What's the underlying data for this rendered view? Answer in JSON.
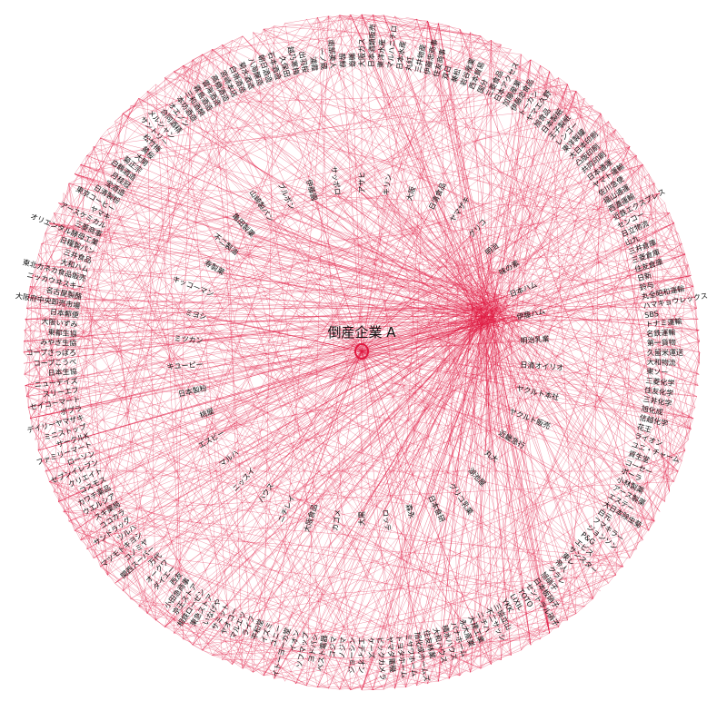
{
  "graph": {
    "center": {
      "label": "倒産企業 A"
    },
    "colors": {
      "edge": "#e0173f",
      "node": "#e0173f",
      "text": "#111111",
      "background": "#ffffff"
    },
    "inner_ring": [
      "大阪",
      "日清食品",
      "ヤマザキ",
      "グリコ",
      "明治",
      "味の素",
      "日本ハム",
      "伊藤ハム",
      "明治乳業",
      "日清オイリオ",
      "ヤクルト本社",
      "ヤクルト販売",
      "近畿急行",
      "丸大",
      "湖池屋",
      "グリコ乳業",
      "日本食研",
      "森永",
      "ロッテ",
      "大黒",
      "カゴメ",
      "大阪食品",
      "ニチレイ",
      "ハウス",
      "ニッスイ",
      "マルハ",
      "エスビー",
      "桃屋",
      "日本製粉",
      "キユーピー",
      "ミツカン",
      "ミヨシ",
      "キッコーマン",
      "寿製菓",
      "不二製油",
      "亀田製菓",
      "山崎製パン",
      "ブルボン",
      "伊藤園",
      "サッポロ",
      "アサヒ",
      "キリン"
    ],
    "outer_ring": [
      "大阪ガス",
      "日本酒類販売",
      "東洋水産",
      "マルハニチロ",
      "日本水産",
      "丸紅",
      "三井物産",
      "伊藤忠商事",
      "住友商事",
      "双日",
      "兼松",
      "岩谷産業",
      "西本貿易",
      "国分",
      "三菱食品",
      "日本アクセス",
      "加藤産業",
      "伊藤忠食品",
      "トーカン",
      "ヤマエ久野",
      "旭食品",
      "日本製紙",
      "王子製紙",
      "レンゴー",
      "東洋製罐",
      "大日本印刷",
      "凸版印刷",
      "共同印刷",
      "日本通運",
      "ヤマト運輸",
      "佐川急便",
      "福山通運",
      "西濃運輸",
      "近鉄エクスプレス",
      "センコー",
      "日立物流",
      "山九",
      "三井倉庫",
      "三菱倉庫",
      "住友倉庫",
      "日新",
      "鈴与",
      "丸全昭和運輸",
      "ハマキョウレックス",
      "SBS",
      "トナミ運輸",
      "名鉄運輸",
      "第一貨物",
      "久留米運送",
      "大和物流",
      "東ソー",
      "三菱化学",
      "住友化学",
      "三井化学",
      "旭化成",
      "信越化学",
      "花王",
      "ライオン",
      "ユニ・チャーム",
      "資生堂",
      "コーセー",
      "ポーラ",
      "小林製薬",
      "アース製薬",
      "エステー",
      "大日本除虫菊",
      "白元",
      "フマキラー",
      "ジョンソン",
      "P&G",
      "エビス",
      "サンスター",
      "東レ",
      "帝人",
      "クラレ",
      "旭硝子",
      "日本板硝子",
      "セントラル硝子",
      "TOTO",
      "LIXIL",
      "YKK",
      "三協立山",
      "不二サッシ",
      "ニチハ",
      "大建工業",
      "永大産業",
      "パナホーム",
      "積水ハウス",
      "大和ハウス",
      "住友林業",
      "旭化成ホームズ",
      "ミサワホーム",
      "トヨタホーム",
      "ヤマダ電機",
      "ビックカメラ",
      "ケーズ",
      "エディオン",
      "ジョーシン",
      "ノジマ",
      "コジマ",
      "ベスト電器",
      "ヨドバシ",
      "ソフマップ",
      "イオン",
      "イトーヨーカ堂",
      "ユニー",
      "イズミ",
      "平和堂",
      "ライフ",
      "マルエツ",
      "ヤオコー",
      "サミット",
      "いなげや",
      "東急ストア",
      "相鉄ローゼン",
      "京王ストア",
      "小田急商事",
      "西友",
      "ダイエー",
      "オークワ",
      "万代",
      "関西スーパー",
      "コノミヤ",
      "マツモトキヨシ",
      "ツルハ",
      "サンドラッグ",
      "ココカラ",
      "スギ薬局",
      "ウエルシア",
      "カワチ薬品",
      "コスモス",
      "クリエイト",
      "セブンイレブン",
      "ローソン",
      "ファミリーマート",
      "サークルK",
      "ミニストップ",
      "デイリーヤマザキ",
      "ポプラ",
      "セイコーマート",
      "スリーエフ",
      "ニューデイズ",
      "日本生協",
      "コープこうべ",
      "コープさっぽろ",
      "みやぎ生協",
      "東都生協",
      "大阪いずみ",
      "日本郵便",
      "大阪府中央卸売市場",
      "名古屋製酪",
      "ニッカウヰスキー",
      "東北カネカ食品販売",
      "大和ハム",
      "三井食品",
      "日糧製パン",
      "オリエンタル酵母工業",
      "三菱商事",
      "アースケミカル",
      "ヤマキ",
      "東京コーヒー",
      "日清製粉",
      "宝酒造",
      "月桂冠",
      "白鶴酒造",
      "菊正宗",
      "大関",
      "黄桜",
      "松竹梅",
      "サントリー",
      "メルシャン",
      "合同酒精",
      "オエノン",
      "本坊酒造",
      "三和酒類",
      "霧島酒造",
      "雲海酒造",
      "高橋酒造",
      "宮崎本店",
      "白嶺酒造",
      "菊水酒造",
      "八海醸造",
      "朝日酒造",
      "石本酒造",
      "久保田",
      "越乃寒梅",
      "出羽桜",
      "浦霞",
      "一ノ蔵",
      "南部美人",
      "酔鯨",
      "獺祭"
    ]
  }
}
